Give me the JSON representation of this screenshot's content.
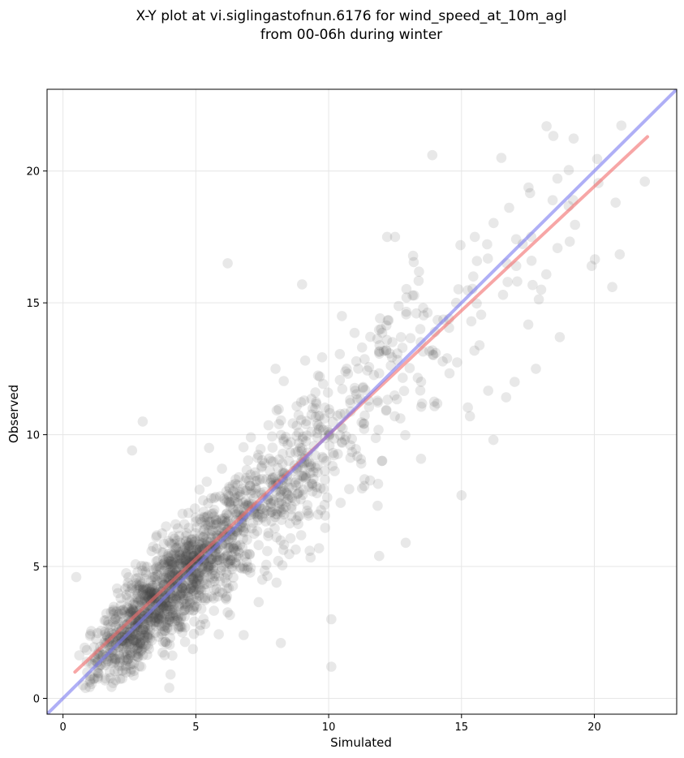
{
  "chart_data": {
    "type": "scatter",
    "title": [
      "X-Y plot at vi.siglingastofnun.6176 for wind_speed_at_10m_agl",
      "from 00-06h during winter"
    ],
    "xlabel": "Simulated",
    "ylabel": "Observed",
    "xlim": [
      -0.6,
      23.1
    ],
    "ylim": [
      -0.6,
      23.1
    ],
    "xticks": [
      0,
      5,
      10,
      15,
      20
    ],
    "yticks": [
      0,
      5,
      10,
      15,
      20
    ],
    "xtick_labels": [
      "0",
      "5",
      "10",
      "15",
      "20"
    ],
    "ytick_labels": [
      "0",
      "5",
      "10",
      "15",
      "20"
    ],
    "grid": true,
    "point_color": "#404040",
    "point_count": 1800,
    "points_sample": [
      [
        0.5,
        4.6
      ],
      [
        2.6,
        9.4
      ],
      [
        3.0,
        10.5
      ],
      [
        6.2,
        16.5
      ],
      [
        9.0,
        15.7
      ],
      [
        10.1,
        3.0
      ],
      [
        10.1,
        1.2
      ],
      [
        13.9,
        20.6
      ],
      [
        18.2,
        21.7
      ],
      [
        16.5,
        20.5
      ],
      [
        21.9,
        19.6
      ],
      [
        15.0,
        7.7
      ],
      [
        16.2,
        9.8
      ],
      [
        8.2,
        2.1
      ],
      [
        4.0,
        0.4
      ],
      [
        12.2,
        17.5
      ],
      [
        12.5,
        17.5
      ],
      [
        18.7,
        13.7
      ],
      [
        17.0,
        12.0
      ],
      [
        20.8,
        18.8
      ],
      [
        19.9,
        16.4
      ],
      [
        11.9,
        5.4
      ],
      [
        12.9,
        5.9
      ],
      [
        6.8,
        2.4
      ],
      [
        17.8,
        12.5
      ],
      [
        13.3,
        14.6
      ],
      [
        14.0,
        13.9
      ],
      [
        10.0,
        10.1
      ],
      [
        8.5,
        9.0
      ],
      [
        5.0,
        5.0
      ],
      [
        3.5,
        2.9
      ],
      [
        2.4,
        2.6
      ],
      [
        1.5,
        1.9
      ],
      [
        7.0,
        7.4
      ],
      [
        9.5,
        11.6
      ],
      [
        11.5,
        11.3
      ],
      [
        14.8,
        15.0
      ],
      [
        16.7,
        16.5
      ],
      [
        19.2,
        18.9
      ],
      [
        4.5,
        7.0
      ],
      [
        6.0,
        4.0
      ],
      [
        8.0,
        12.5
      ],
      [
        10.5,
        14.5
      ],
      [
        12.0,
        9.0
      ],
      [
        15.5,
        17.5
      ],
      [
        18.0,
        15.5
      ],
      [
        5.5,
        9.5
      ],
      [
        7.5,
        4.5
      ]
    ],
    "series": [
      {
        "type": "regression",
        "color": "#f26b6b",
        "x": [
          0.45,
          22.0
        ],
        "y": [
          1.0,
          21.3
        ]
      },
      {
        "type": "identity",
        "color": "#7a7af0",
        "x": [
          -0.6,
          23.1
        ],
        "y": [
          -0.6,
          23.1
        ]
      }
    ]
  }
}
